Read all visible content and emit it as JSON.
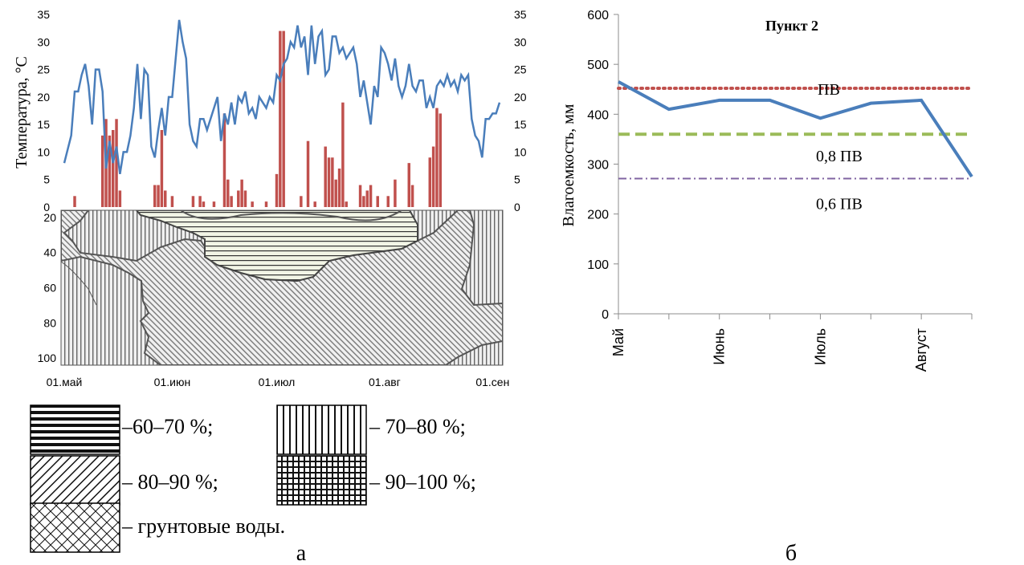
{
  "chart_data": [
    {
      "type": "bar+line",
      "panel_label": "а",
      "ylabel": "Температура, °С",
      "ylim": [
        0,
        35
      ],
      "yticks": [
        0,
        5,
        10,
        15,
        20,
        25,
        30,
        35
      ],
      "right_yticks": [
        0,
        5,
        10,
        15,
        20,
        25,
        30,
        35
      ],
      "x_start_day": 0,
      "x_end_day": 125,
      "temperature_series_color": "#4a7ebb",
      "precipitation_series_color": "#c0504d",
      "temperature": [
        [
          0,
          8
        ],
        [
          2,
          13
        ],
        [
          3,
          21
        ],
        [
          4,
          21
        ],
        [
          5,
          24
        ],
        [
          6,
          26
        ],
        [
          7,
          22
        ],
        [
          8,
          15
        ],
        [
          9,
          25
        ],
        [
          10,
          25
        ],
        [
          11,
          21
        ],
        [
          12,
          7
        ],
        [
          13,
          12
        ],
        [
          14,
          8
        ],
        [
          15,
          11
        ],
        [
          16,
          6
        ],
        [
          17,
          10
        ],
        [
          18,
          10
        ],
        [
          19,
          13
        ],
        [
          20,
          18
        ],
        [
          21,
          26
        ],
        [
          22,
          16
        ],
        [
          23,
          25
        ],
        [
          24,
          24
        ],
        [
          25,
          11
        ],
        [
          26,
          9
        ],
        [
          27,
          14
        ],
        [
          28,
          18
        ],
        [
          29,
          13
        ],
        [
          30,
          20
        ],
        [
          31,
          20
        ],
        [
          32,
          27
        ],
        [
          33,
          34
        ],
        [
          34,
          30
        ],
        [
          35,
          27
        ],
        [
          36,
          15
        ],
        [
          37,
          12
        ],
        [
          38,
          11
        ],
        [
          39,
          16
        ],
        [
          40,
          16
        ],
        [
          41,
          14
        ],
        [
          42,
          16
        ],
        [
          43,
          18
        ],
        [
          44,
          20
        ],
        [
          45,
          12
        ],
        [
          46,
          17
        ],
        [
          47,
          15
        ],
        [
          48,
          19
        ],
        [
          49,
          15
        ],
        [
          50,
          20
        ],
        [
          51,
          19
        ],
        [
          52,
          21
        ],
        [
          53,
          17
        ],
        [
          54,
          18
        ],
        [
          55,
          16
        ],
        [
          56,
          20
        ],
        [
          57,
          19
        ],
        [
          58,
          18
        ],
        [
          59,
          20
        ],
        [
          60,
          19
        ],
        [
          61,
          24
        ],
        [
          62,
          23
        ],
        [
          63,
          26
        ],
        [
          64,
          27
        ],
        [
          65,
          30
        ],
        [
          66,
          29
        ],
        [
          67,
          33
        ],
        [
          68,
          29
        ],
        [
          69,
          31
        ],
        [
          70,
          24
        ],
        [
          71,
          33
        ],
        [
          72,
          26
        ],
        [
          73,
          31
        ],
        [
          74,
          32
        ],
        [
          75,
          24
        ],
        [
          76,
          25
        ],
        [
          77,
          31
        ],
        [
          78,
          31
        ],
        [
          79,
          28
        ],
        [
          80,
          29
        ],
        [
          81,
          27
        ],
        [
          82,
          28
        ],
        [
          83,
          29
        ],
        [
          84,
          26
        ],
        [
          85,
          20
        ],
        [
          86,
          23
        ],
        [
          87,
          19
        ],
        [
          88,
          15
        ],
        [
          89,
          22
        ],
        [
          90,
          20
        ],
        [
          91,
          29
        ],
        [
          92,
          28
        ],
        [
          93,
          26
        ],
        [
          94,
          23
        ],
        [
          95,
          27
        ],
        [
          96,
          22
        ],
        [
          97,
          20
        ],
        [
          98,
          22
        ],
        [
          99,
          26
        ],
        [
          100,
          22
        ],
        [
          101,
          21
        ],
        [
          102,
          23
        ],
        [
          103,
          23
        ],
        [
          104,
          18
        ],
        [
          105,
          20
        ],
        [
          106,
          18
        ],
        [
          107,
          22
        ],
        [
          108,
          23
        ],
        [
          109,
          22
        ],
        [
          110,
          24
        ],
        [
          111,
          22
        ],
        [
          112,
          23
        ],
        [
          113,
          21
        ],
        [
          114,
          24
        ],
        [
          115,
          23
        ],
        [
          116,
          24
        ],
        [
          117,
          16
        ],
        [
          118,
          13
        ],
        [
          119,
          12
        ],
        [
          120,
          9
        ],
        [
          121,
          16
        ],
        [
          122,
          16
        ],
        [
          123,
          17
        ],
        [
          124,
          17
        ],
        [
          125,
          19
        ]
      ],
      "precipitation": [
        [
          3,
          2
        ],
        [
          11,
          13
        ],
        [
          12,
          16
        ],
        [
          13,
          13
        ],
        [
          14,
          14
        ],
        [
          15,
          16
        ],
        [
          16,
          3
        ],
        [
          26,
          4
        ],
        [
          27,
          4
        ],
        [
          28,
          14
        ],
        [
          29,
          3
        ],
        [
          31,
          2
        ],
        [
          37,
          2
        ],
        [
          39,
          2
        ],
        [
          40,
          1
        ],
        [
          43,
          1
        ],
        [
          46,
          17
        ],
        [
          47,
          5
        ],
        [
          48,
          2
        ],
        [
          50,
          3
        ],
        [
          51,
          5
        ],
        [
          52,
          3
        ],
        [
          54,
          1
        ],
        [
          58,
          1
        ],
        [
          61,
          6
        ],
        [
          62,
          32
        ],
        [
          63,
          32
        ],
        [
          68,
          2
        ],
        [
          70,
          12
        ],
        [
          72,
          1
        ],
        [
          75,
          11
        ],
        [
          76,
          9
        ],
        [
          77,
          9
        ],
        [
          78,
          5
        ],
        [
          79,
          7
        ],
        [
          80,
          19
        ],
        [
          81,
          1
        ],
        [
          85,
          4
        ],
        [
          86,
          2
        ],
        [
          87,
          3
        ],
        [
          88,
          4
        ],
        [
          90,
          2
        ],
        [
          93,
          2
        ],
        [
          95,
          5
        ],
        [
          99,
          8
        ],
        [
          100,
          4
        ],
        [
          105,
          9
        ],
        [
          106,
          11
        ],
        [
          107,
          18
        ],
        [
          108,
          17
        ]
      ],
      "xticklabels": [
        "01.май",
        "01.июн",
        "01.июл",
        "01.авг",
        "01.сен"
      ],
      "depth_ticks": [
        20,
        40,
        60,
        80,
        100
      ],
      "legend": {
        "items": [
          {
            "pattern": "horizontal",
            "label": "–60–70 %;"
          },
          {
            "pattern": "vertical",
            "label": "– 70–80 %;"
          },
          {
            "pattern": "diagonal",
            "label": "– 80–90 %;"
          },
          {
            "pattern": "grid",
            "label": "– 90–100 %;"
          },
          {
            "pattern": "crosshatch",
            "label": "– грунтовые воды."
          }
        ]
      }
    },
    {
      "type": "line",
      "panel_label": "б",
      "title": "Пункт 2",
      "ylabel": "Влагоемкость, мм",
      "ylim": [
        0,
        600
      ],
      "yticks": [
        0,
        100,
        200,
        300,
        400,
        500,
        600
      ],
      "categories": [
        "Май",
        "",
        "Июнь",
        "",
        "Июль",
        "",
        "Август",
        ""
      ],
      "series": [
        {
          "values": [
            465,
            410,
            428,
            428,
            392,
            422,
            428,
            275
          ],
          "color": "#4a7ebb",
          "style": "solid"
        }
      ],
      "reference_lines": [
        {
          "label": "ПВ",
          "value": 452,
          "color": "#c0504d",
          "style": "dotted"
        },
        {
          "label": "0,8 ПВ",
          "value": 360,
          "color": "#9bbb59",
          "style": "dashed"
        },
        {
          "label": "0,6 ПВ",
          "value": 271,
          "color": "#8064a2",
          "style": "dash-dot"
        }
      ]
    }
  ]
}
